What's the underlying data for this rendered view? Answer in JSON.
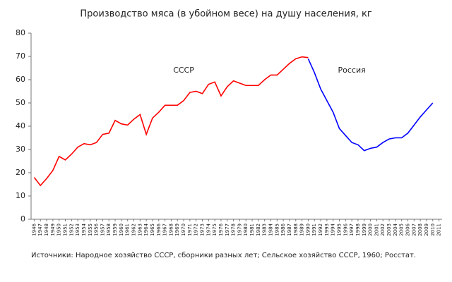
{
  "chart_data": {
    "type": "line",
    "title": "Производство мяса (в убойном весе) на душу населения, кг",
    "source": "Источники: Народное хозяйство СССР, сборники разных лет; Сельское хозяйство СССР, 1960; Росстат.",
    "annotations": [
      {
        "text": "СССР",
        "x": 1970,
        "y": 64
      },
      {
        "text": "Россия",
        "x": 1997,
        "y": 64
      }
    ],
    "x": [
      1946,
      1947,
      1948,
      1949,
      1950,
      1951,
      1952,
      1953,
      1954,
      1955,
      1956,
      1957,
      1958,
      1959,
      1960,
      1961,
      1962,
      1963,
      1964,
      1965,
      1966,
      1967,
      1968,
      1969,
      1970,
      1971,
      1972,
      1973,
      1974,
      1975,
      1976,
      1977,
      1978,
      1979,
      1980,
      1981,
      1982,
      1983,
      1984,
      1985,
      1986,
      1987,
      1988,
      1989,
      1990,
      1991,
      1992,
      1993,
      1994,
      1995,
      1996,
      1997,
      1998,
      1999,
      2000,
      2001,
      2002,
      2003,
      2004,
      2005,
      2006,
      2007,
      2008,
      2009,
      2010
    ],
    "series": [
      {
        "name": "СССР",
        "color": "#ff0000",
        "values": [
          18,
          14.5,
          17.5,
          21,
          27,
          25.5,
          28,
          31,
          32.5,
          32,
          33,
          36.5,
          37,
          42.5,
          41,
          40.5,
          43,
          45,
          36.5,
          43.5,
          46,
          49,
          49,
          49,
          51,
          54.5,
          55,
          54,
          58,
          59,
          53,
          57,
          59.5,
          58.5,
          57.5,
          57.5,
          57.5,
          60,
          62,
          62,
          64.5,
          67,
          69,
          69.8,
          69.5,
          null,
          null,
          null,
          null,
          null,
          null,
          null,
          null,
          null,
          null,
          null,
          null,
          null,
          null,
          null,
          null,
          null,
          null,
          null,
          null
        ]
      },
      {
        "name": "Россия",
        "color": "#0000ff",
        "values": [
          null,
          null,
          null,
          null,
          null,
          null,
          null,
          null,
          null,
          null,
          null,
          null,
          null,
          null,
          null,
          null,
          null,
          null,
          null,
          null,
          null,
          null,
          null,
          null,
          null,
          null,
          null,
          null,
          null,
          null,
          null,
          null,
          null,
          null,
          null,
          null,
          null,
          null,
          null,
          null,
          null,
          null,
          null,
          null,
          69,
          63,
          56,
          51,
          46,
          39,
          36,
          33,
          32,
          29.5,
          30.5,
          31,
          33,
          34.5,
          35,
          35,
          37,
          40.5,
          44,
          47,
          50
        ]
      }
    ],
    "xlim": [
      1945.5,
      2011.5
    ],
    "xticks": [
      1946,
      1947,
      1948,
      1949,
      1950,
      1951,
      1952,
      1953,
      1954,
      1955,
      1956,
      1957,
      1958,
      1959,
      1960,
      1961,
      1962,
      1963,
      1964,
      1965,
      1966,
      1967,
      1968,
      1969,
      1970,
      1971,
      1972,
      1973,
      1974,
      1975,
      1976,
      1977,
      1978,
      1979,
      1980,
      1981,
      1982,
      1983,
      1984,
      1985,
      1986,
      1987,
      1988,
      1989,
      1990,
      1991,
      1992,
      1993,
      1994,
      1995,
      1996,
      1997,
      1998,
      1999,
      2000,
      2001,
      2002,
      2003,
      2004,
      2005,
      2006,
      2007,
      2008,
      2009,
      2010,
      2011
    ],
    "ylim": [
      0,
      80
    ],
    "yticks": [
      0,
      10,
      20,
      30,
      40,
      50,
      60,
      70,
      80
    ],
    "grid": false
  }
}
